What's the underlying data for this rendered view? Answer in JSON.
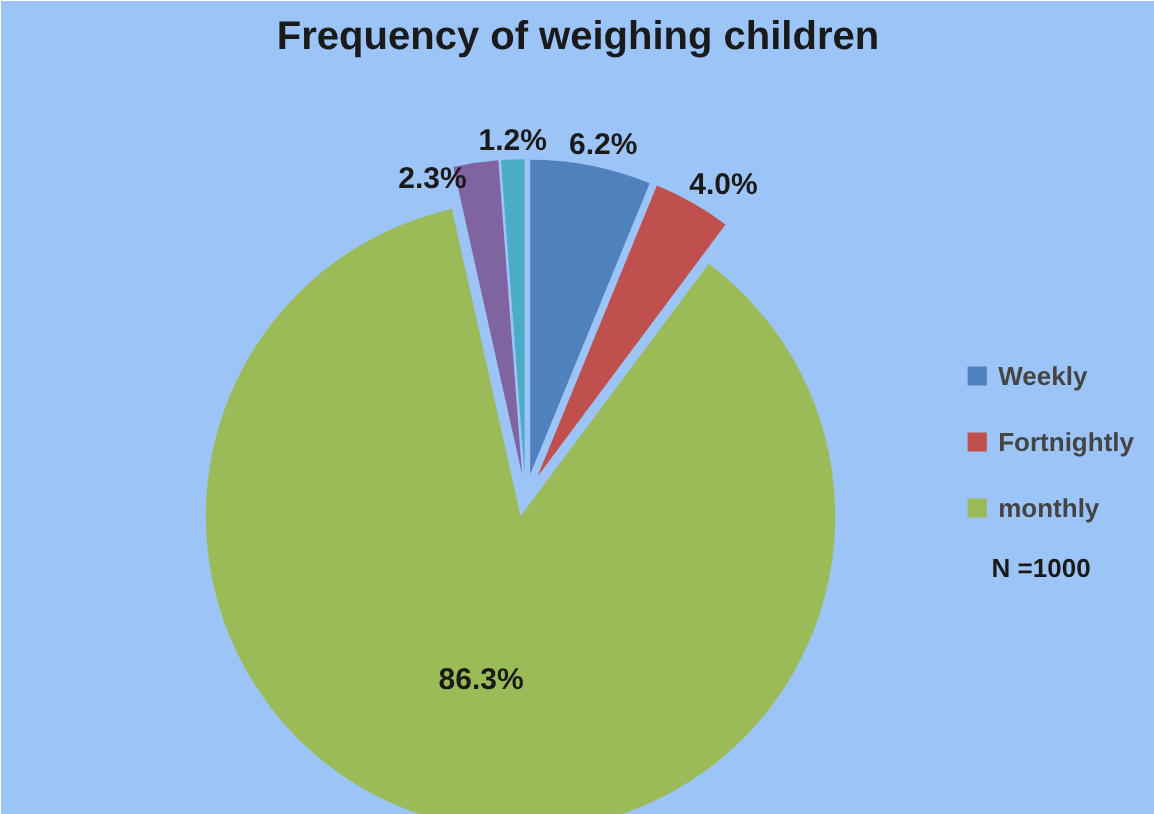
{
  "chart_data": {
    "type": "pie",
    "title": "Frequency of weighing children",
    "categories": [
      "Weekly",
      "Fortnightly",
      "monthly",
      null,
      null
    ],
    "values": [
      6.2,
      4.0,
      86.3,
      2.3,
      1.2
    ],
    "colors": [
      "#4f81bd",
      "#c0504d",
      "#9bbb59",
      "#8064a2",
      "#4bacc6"
    ],
    "value_labels": [
      "6.2%",
      "4.0%",
      "86.3%",
      "2.3%",
      "1.2%"
    ],
    "legend": "right",
    "annotations": [
      "N =1000"
    ]
  }
}
